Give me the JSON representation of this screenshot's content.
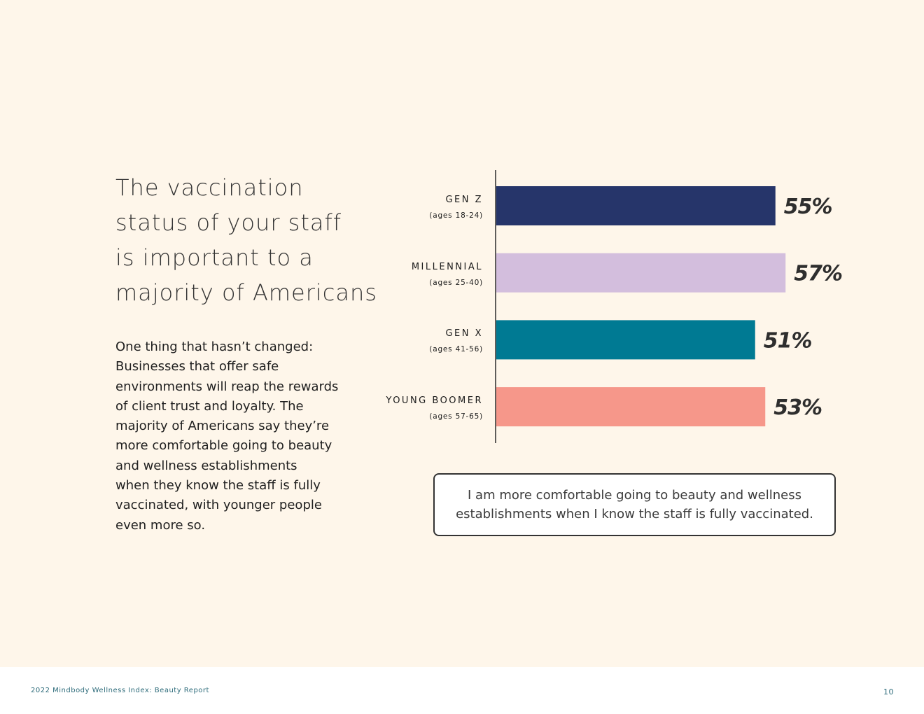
{
  "headline": {
    "lines": [
      "The vaccination",
      "status of your staff",
      "is important to a",
      "majority of Americans"
    ]
  },
  "body": {
    "lines": [
      "One thing that hasn’t changed:",
      "Businesses that offer safe",
      "environments will reap the rewards",
      "of client trust and loyalty. The",
      "majority of Americans say they’re",
      "more comfortable going to beauty",
      "and wellness establishments",
      "when they know the staff is fully",
      "vaccinated, with younger people",
      "even more so."
    ]
  },
  "chart_data": {
    "type": "bar",
    "orientation": "horizontal",
    "categories": [
      "GEN Z",
      "MILLENNIAL",
      "GEN X",
      "YOUNG BOOMER"
    ],
    "category_subtitles": [
      "(ages 18-24)",
      "(ages 25-40)",
      "(ages 41-56)",
      "(ages 57-65)"
    ],
    "values": [
      55,
      57,
      51,
      53
    ],
    "value_labels": [
      "55%",
      "57%",
      "51%",
      "53%"
    ],
    "colors": [
      "#26356a",
      "#d3bedd",
      "#007a93",
      "#f6978a"
    ],
    "xlim": [
      0,
      60
    ],
    "title": "",
    "xlabel": "",
    "ylabel": "",
    "grid": false
  },
  "callout": {
    "text": "I am more comfortable going to beauty and wellness establishments when I know the staff is fully vaccinated."
  },
  "footer": {
    "report_title": "2022 Mindbody Wellness Index: Beauty Report",
    "page_number": "10"
  }
}
